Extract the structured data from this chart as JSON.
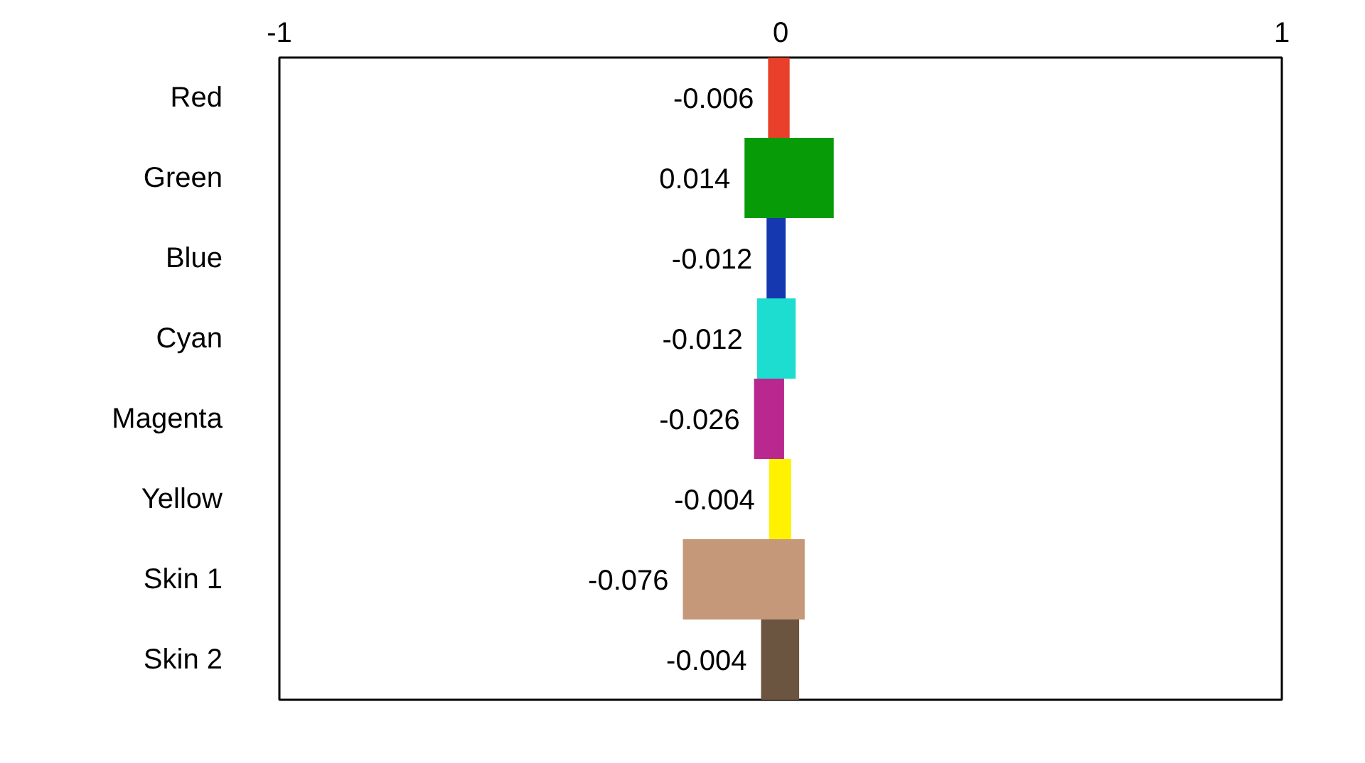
{
  "chart_data": {
    "type": "bar",
    "orientation": "horizontal",
    "categories": [
      "Red",
      "Green",
      "Blue",
      "Cyan",
      "Magenta",
      "Yellow",
      "Skin 1",
      "Skin 2"
    ],
    "base": [
      -0.025,
      -0.072,
      -0.028,
      -0.047,
      -0.053,
      -0.023,
      -0.195,
      -0.039
    ],
    "values": [
      0.043,
      0.178,
      0.038,
      0.077,
      0.06,
      0.044,
      0.243,
      0.076
    ],
    "colors": [
      "#e8402a",
      "#079b08",
      "#1537b0",
      "#1ddcd0",
      "#b9288f",
      "#fff200",
      "#c49878",
      "#6b5440"
    ],
    "annotations": [
      {
        "text": "-0.006",
        "x": -0.025,
        "y": "Red"
      },
      {
        "text": "0.014",
        "x": -0.072,
        "y": "Green"
      },
      {
        "text": "-0.012",
        "x": -0.028,
        "y": "Blue"
      },
      {
        "text": "-0.012",
        "x": -0.047,
        "y": "Cyan"
      },
      {
        "text": "-0.026",
        "x": -0.053,
        "y": "Magenta"
      },
      {
        "text": "-0.004",
        "x": -0.023,
        "y": "Yellow"
      },
      {
        "text": "-0.076",
        "x": -0.195,
        "y": "Skin 1"
      },
      {
        "text": "-0.004",
        "x": -0.039,
        "y": "Skin 2"
      }
    ],
    "xlim": [
      -1,
      1
    ],
    "xticks": [
      -1,
      0,
      1
    ],
    "grid": false
  }
}
